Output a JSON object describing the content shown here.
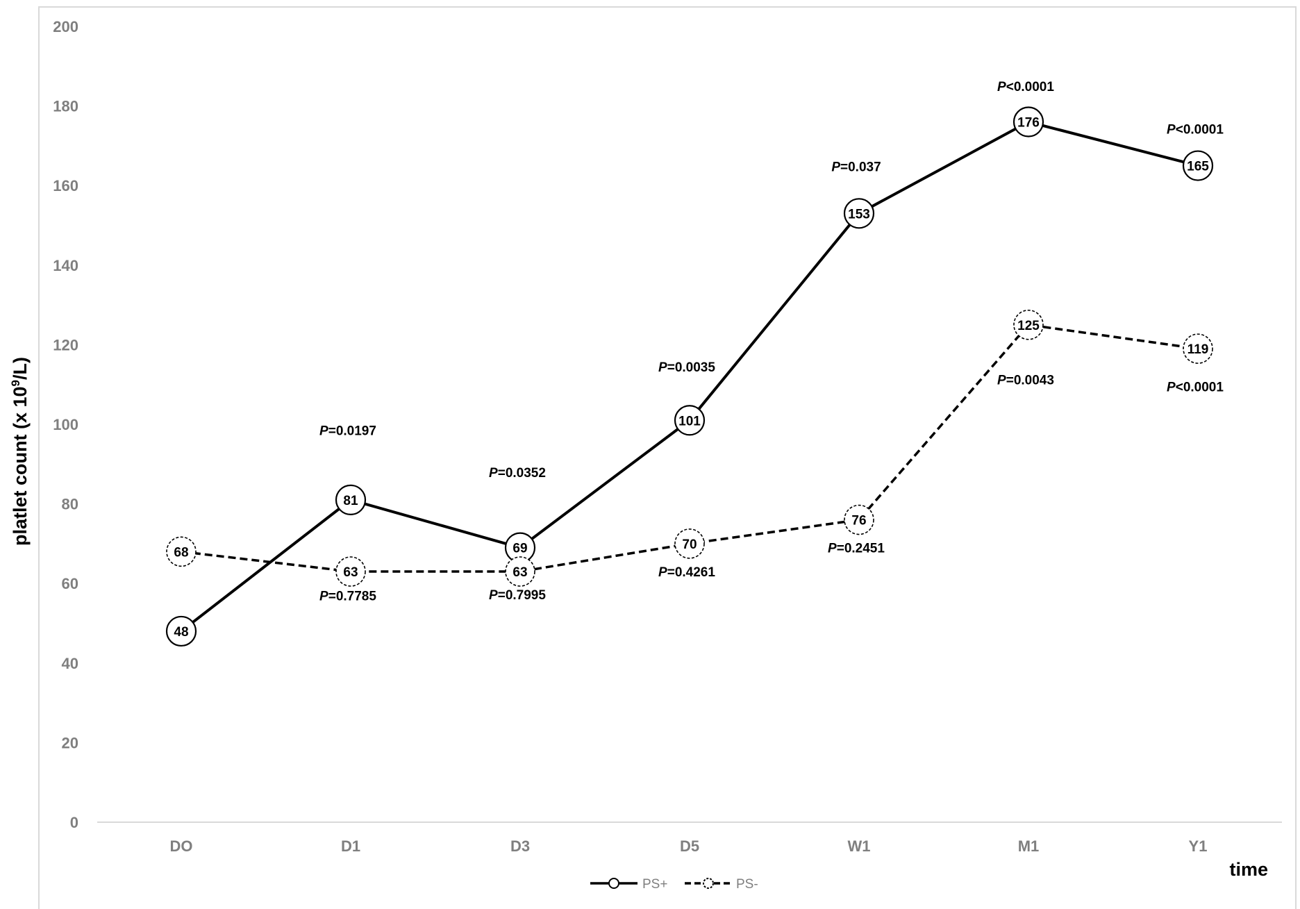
{
  "chart_data": {
    "type": "line",
    "title": "",
    "xlabel": "time",
    "ylabel": "platlet count (x 10",
    "ylabel_sup": "9",
    "ylabel_tail": "/L)",
    "ylim": [
      0,
      200
    ],
    "yticks": [
      0,
      20,
      40,
      60,
      80,
      100,
      120,
      140,
      160,
      180,
      200
    ],
    "ytick_labels": [
      "0",
      "20",
      "40",
      "60",
      "80",
      "100",
      "120",
      "140",
      "160",
      "180",
      "200"
    ],
    "categories": [
      "DO",
      "D1",
      "D3",
      "D5",
      "W1",
      "M1",
      "Y1"
    ],
    "grid": false,
    "legend_position": "bottom",
    "series": [
      {
        "name": "PS+",
        "line_style": "solid",
        "values": [
          48,
          81,
          69,
          101,
          153,
          176,
          165
        ],
        "labels": [
          "48",
          "81",
          "69",
          "101",
          "153",
          "176",
          "165"
        ],
        "annotations": [
          {
            "category_index": 1,
            "y": 98.5,
            "p": "P",
            "text": "=0.0197"
          },
          {
            "category_index": 2,
            "y": 88,
            "p": "P",
            "text": "=0.0352"
          },
          {
            "category_index": 3,
            "y": 114.5,
            "p": "P",
            "text": "=0.0035"
          },
          {
            "category_index": 4,
            "y": 164.8,
            "p": "P",
            "text": "=0.037"
          },
          {
            "category_index": 5,
            "y": 185,
            "p": "P",
            "text": "<0.0001"
          },
          {
            "category_index": 6,
            "y": 174.3,
            "p": "P",
            "text": "<0.0001"
          }
        ]
      },
      {
        "name": "PS-",
        "line_style": "dashed",
        "values": [
          68,
          63,
          63,
          70,
          76,
          125,
          119
        ],
        "labels": [
          "68",
          "63",
          "63",
          "70",
          "76",
          "125",
          "119"
        ],
        "annotations": [
          {
            "category_index": 1,
            "y": 57,
            "p": "P",
            "text": "=0.7785"
          },
          {
            "category_index": 2,
            "y": 57.2,
            "p": "P",
            "text": "=0.7995"
          },
          {
            "category_index": 3,
            "y": 63,
            "p": "P",
            "text": "=0.4261"
          },
          {
            "category_index": 4,
            "y": 69,
            "p": "P",
            "text": "=0.2451"
          },
          {
            "category_index": 5,
            "y": 111.3,
            "p": "P",
            "text": "=0.0043"
          },
          {
            "category_index": 6,
            "y": 109.5,
            "p": "P",
            "text": "<0.0001"
          }
        ]
      }
    ]
  },
  "colors": {
    "line": "#000000",
    "axis": "#d9d9d9",
    "frame": "#d9d9d9",
    "tick_text": "#7f7f7f",
    "legend_text": "#7f7f7f"
  }
}
